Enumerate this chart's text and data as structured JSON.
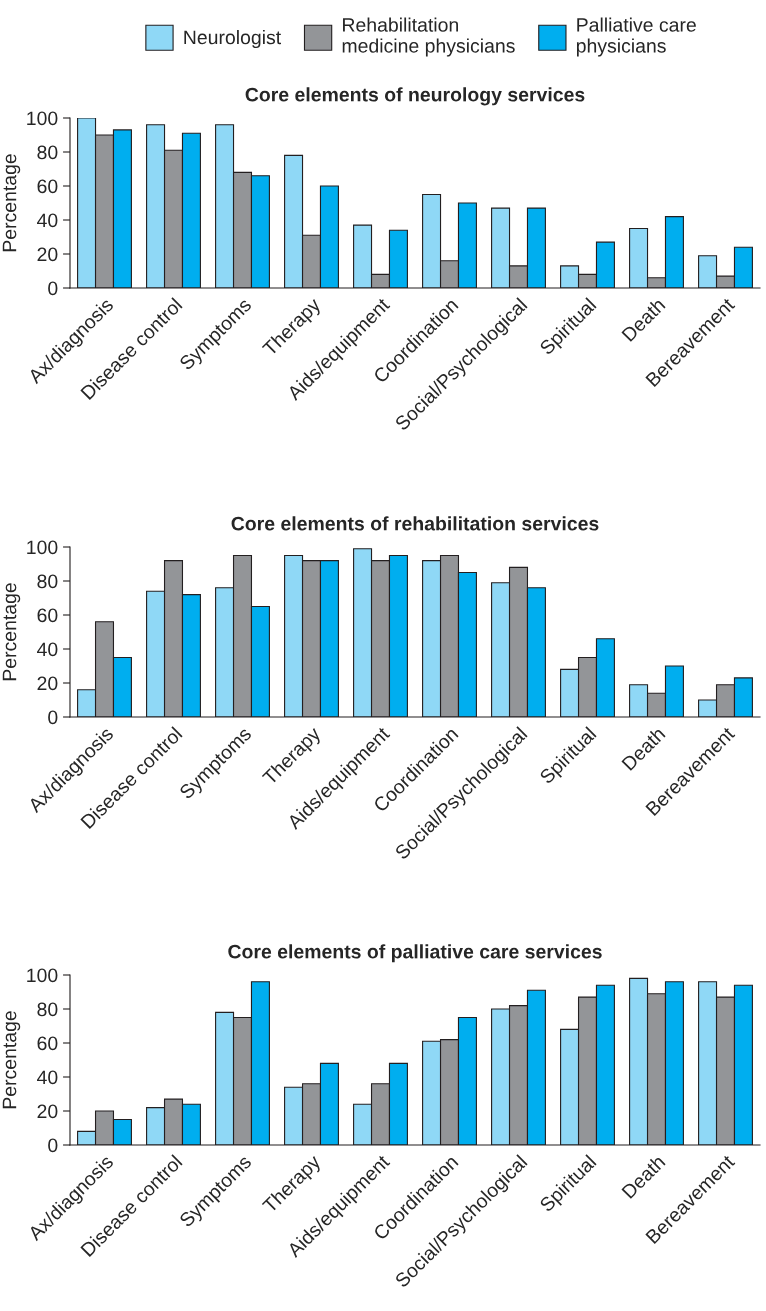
{
  "chart_data": [
    {
      "type": "bar",
      "title": "Core elements of neurology services",
      "ylabel": "Percentage",
      "categories": [
        "Ax/diagnosis",
        "Disease control",
        "Symptoms",
        "Therapy",
        "Aids/equipment",
        "Coordination",
        "Social/Psychological",
        "Spiritual",
        "Death",
        "Bereavement"
      ],
      "ylim": [
        0,
        100
      ],
      "yticks": [
        0,
        20,
        40,
        60,
        80,
        100
      ],
      "legend": "top",
      "grid": false,
      "series": [
        {
          "name": "Neurologist",
          "color": "#8fd8f6",
          "values": [
            100,
            96,
            96,
            78,
            37,
            55,
            47,
            13,
            35,
            19
          ]
        },
        {
          "name": "Rehabilitation\nmedicine physicians",
          "color": "#939598",
          "values": [
            90,
            81,
            68,
            31,
            8,
            16,
            13,
            8,
            6,
            7
          ]
        },
        {
          "name": "Palliative care\nphysicians",
          "color": "#00aeef",
          "values": [
            93,
            91,
            66,
            60,
            34,
            50,
            47,
            27,
            42,
            24
          ]
        }
      ]
    },
    {
      "type": "bar",
      "title": "Core elements of rehabilitation services",
      "ylabel": "Percentage",
      "categories": [
        "Ax/diagnosis",
        "Disease control",
        "Symptoms",
        "Therapy",
        "Aids/equipment",
        "Coordination",
        "Social/Psychological",
        "Spiritual",
        "Death",
        "Bereavement"
      ],
      "ylim": [
        0,
        100
      ],
      "yticks": [
        0,
        20,
        40,
        60,
        80,
        100
      ],
      "grid": false,
      "series": [
        {
          "color": "#8fd8f6",
          "values": [
            16,
            74,
            76,
            95,
            99,
            92,
            79,
            28,
            19,
            10
          ]
        },
        {
          "color": "#939598",
          "values": [
            56,
            92,
            95,
            92,
            92,
            95,
            88,
            35,
            14,
            19
          ]
        },
        {
          "color": "#00aeef",
          "values": [
            35,
            72,
            65,
            92,
            95,
            85,
            76,
            46,
            30,
            23
          ]
        }
      ]
    },
    {
      "type": "bar",
      "title": "Core elements of palliative care services",
      "ylabel": "Percentage",
      "categories": [
        "Ax/diagnosis",
        "Disease control",
        "Symptoms",
        "Therapy",
        "Aids/equipment",
        "Coordination",
        "Social/Psychological",
        "Spiritual",
        "Death",
        "Bereavement"
      ],
      "ylim": [
        0,
        100
      ],
      "yticks": [
        0,
        20,
        40,
        60,
        80,
        100
      ],
      "grid": false,
      "series": [
        {
          "color": "#8fd8f6",
          "values": [
            8,
            22,
            78,
            34,
            24,
            61,
            80,
            68,
            98,
            96
          ]
        },
        {
          "color": "#939598",
          "values": [
            20,
            27,
            75,
            36,
            36,
            62,
            82,
            87,
            89,
            87
          ]
        },
        {
          "color": "#00aeef",
          "values": [
            15,
            24,
            96,
            48,
            48,
            75,
            91,
            94,
            96,
            94
          ]
        }
      ]
    }
  ]
}
